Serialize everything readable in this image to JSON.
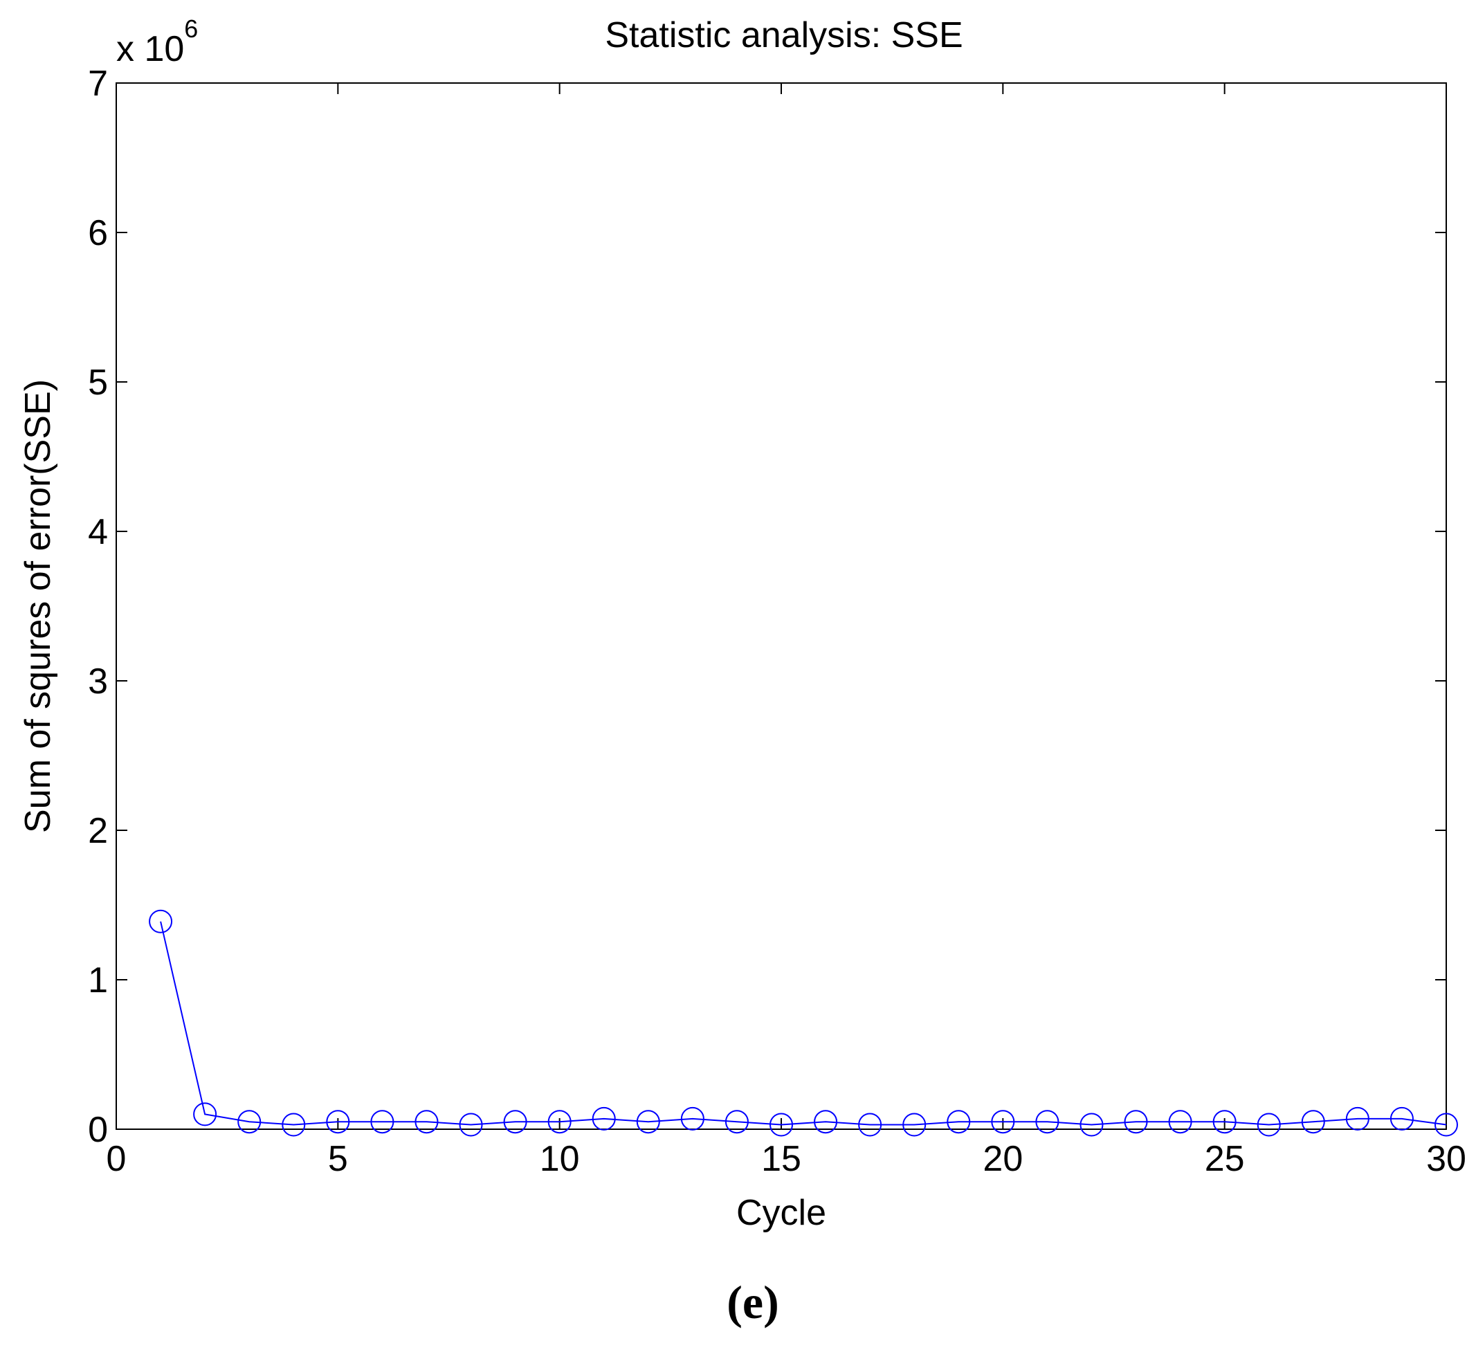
{
  "chart_data": {
    "type": "line",
    "title": "Statistic analysis: SSE",
    "xlabel": "Cycle",
    "ylabel": "Sum of squres of error(SSE)",
    "y_exponent": "x 10",
    "y_exponent_power": "6",
    "xlim": [
      0,
      30
    ],
    "ylim": [
      0,
      7
    ],
    "y_scale_factor": 1000000,
    "x_ticks": [
      0,
      5,
      10,
      15,
      20,
      25,
      30
    ],
    "y_ticks": [
      0,
      1,
      2,
      3,
      4,
      5,
      6,
      7
    ],
    "grid": false,
    "marker": "circle",
    "color": "#0000ff",
    "series": [
      {
        "x": [
          1,
          2,
          3,
          4,
          5,
          6,
          7,
          8,
          9,
          10,
          11,
          12,
          13,
          14,
          15,
          16,
          17,
          18,
          19,
          20,
          21,
          22,
          23,
          24,
          25,
          26,
          27,
          28,
          29,
          30
        ],
        "values": [
          1.39,
          0.1,
          0.05,
          0.03,
          0.05,
          0.05,
          0.05,
          0.03,
          0.05,
          0.05,
          0.07,
          0.05,
          0.07,
          0.05,
          0.03,
          0.05,
          0.03,
          0.03,
          0.05,
          0.05,
          0.05,
          0.03,
          0.05,
          0.05,
          0.05,
          0.03,
          0.05,
          0.07,
          0.07,
          0.03
        ]
      }
    ]
  },
  "panel_label": "(e)"
}
